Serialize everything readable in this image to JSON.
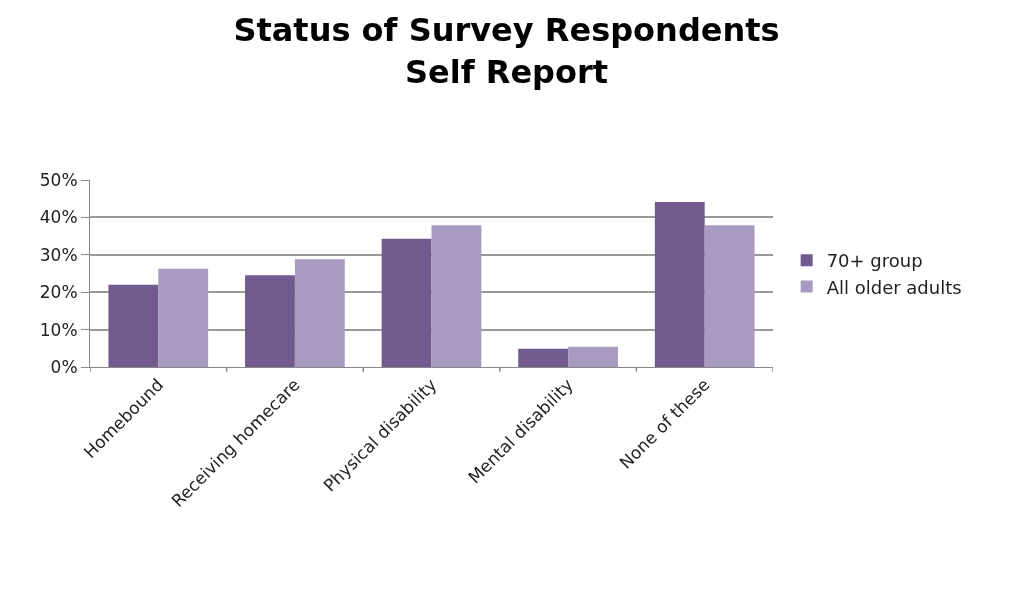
{
  "chart_data": {
    "type": "bar",
    "title": "Status of Survey Respondents\nSelf Report",
    "categories": [
      "Homebound",
      "Receiving homecare",
      "Physical disability",
      "Mental disability",
      "None of these"
    ],
    "series": [
      {
        "name": "70+ group",
        "color": "#725a8f",
        "values": [
          22.0,
          24.5,
          34.3,
          4.9,
          44.1
        ]
      },
      {
        "name": "All older adults",
        "color": "#a99bc0",
        "values": [
          26.3,
          28.8,
          37.9,
          5.4,
          37.9
        ]
      }
    ],
    "ylim": [
      0,
      50
    ],
    "yticks": [
      {
        "value": 0,
        "label": "0%"
      },
      {
        "value": 10,
        "label": "10%"
      },
      {
        "value": 20,
        "label": "20%"
      },
      {
        "value": 30,
        "label": "30%"
      },
      {
        "value": 40,
        "label": "40%"
      },
      {
        "value": 50,
        "label": "50%"
      }
    ],
    "grid": "y",
    "legend": "right"
  }
}
